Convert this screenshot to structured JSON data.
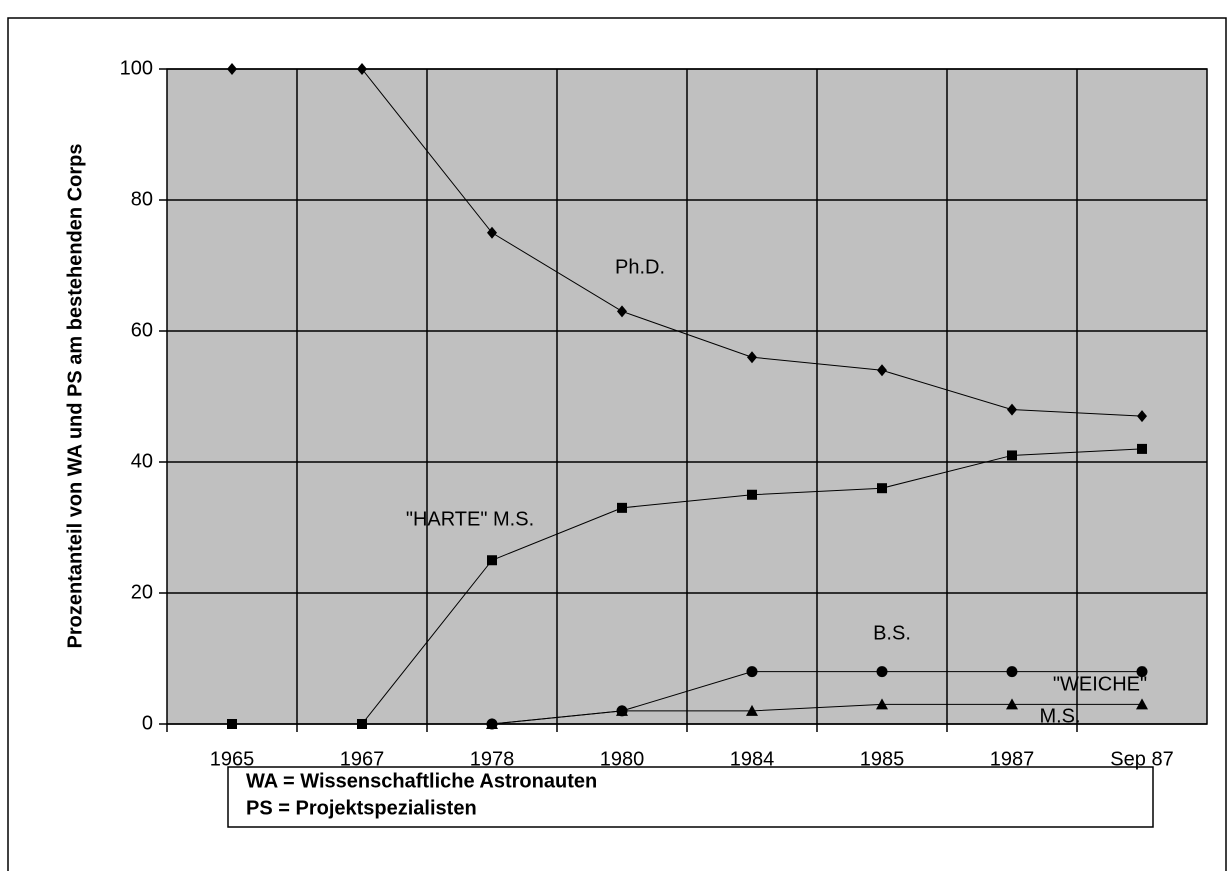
{
  "chart_data": {
    "type": "line",
    "ylabel": "Prozentanteil von WA und PS am bestehenden Corps",
    "categories": [
      "1965",
      "1967",
      "1978",
      "1980",
      "1984",
      "1985",
      "1987",
      "Sep 87"
    ],
    "series": [
      {
        "name": "Ph.D.",
        "color": "#000000",
        "marker": "diamond",
        "values": [
          100,
          100,
          75,
          63,
          56,
          54,
          48,
          47
        ]
      },
      {
        "name": "\"HARTE\" M.S.",
        "color": "#000000",
        "marker": "square",
        "values": [
          0,
          0,
          25,
          33,
          35,
          36,
          41,
          42
        ]
      },
      {
        "name": "B.S.",
        "color": "#000000",
        "marker": "circle",
        "values": [
          null,
          null,
          0,
          2,
          8,
          8,
          8,
          8
        ]
      },
      {
        "name": "\"WEICHE\" M.S.",
        "color": "#000000",
        "marker": "triangle",
        "values": [
          null,
          null,
          0,
          2,
          2,
          3,
          3,
          3
        ]
      }
    ],
    "annotations": [
      "Ph.D.",
      "\"HARTE\" M.S.",
      "B.S.",
      "\"WEICHE\"",
      "M.S."
    ],
    "ylim": [
      0,
      100
    ],
    "yticks": [
      0,
      20,
      40,
      60,
      80,
      100
    ],
    "grid": true,
    "plot_background": "#c0c0c0",
    "note": [
      "WA = Wissenschaftliche Astronauten",
      "PS = Projektspezialisten"
    ]
  }
}
